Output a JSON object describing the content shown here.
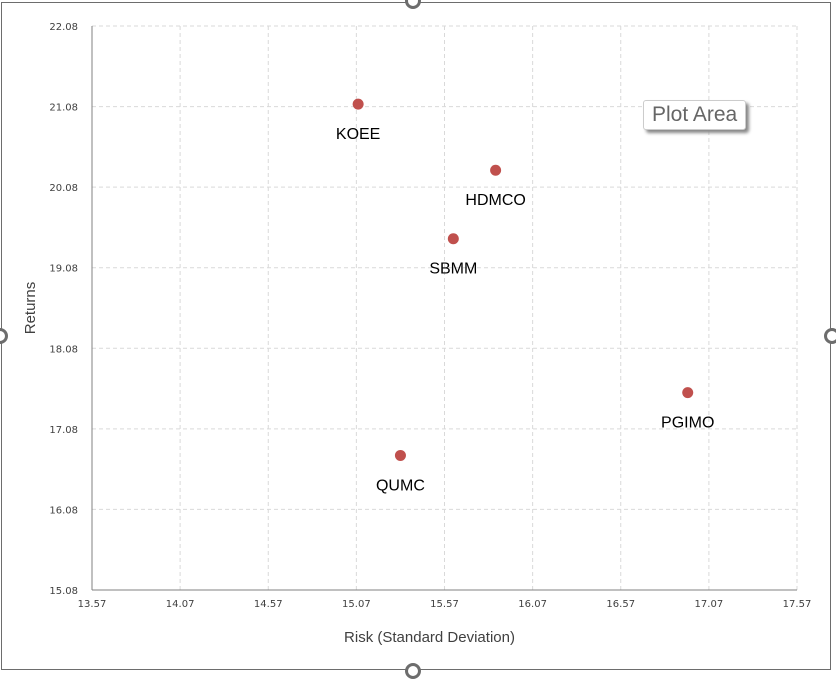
{
  "chart_data": {
    "type": "scatter",
    "title": "",
    "xlabel": "Risk (Standard Deviation)",
    "ylabel": "Returns",
    "xlim": [
      13.57,
      17.57
    ],
    "ylim": [
      15.08,
      22.08
    ],
    "xticks": [
      "13.57",
      "14.07",
      "14.57",
      "15.07",
      "15.57",
      "16.07",
      "16.57",
      "17.07",
      "17.57"
    ],
    "yticks": [
      "15.08",
      "16.08",
      "17.08",
      "18.08",
      "19.08",
      "20.08",
      "21.08",
      "22.08"
    ],
    "grid": true,
    "points": [
      {
        "label": "KOEE",
        "x": 15.08,
        "y": 21.11
      },
      {
        "label": "HDMCO",
        "x": 15.86,
        "y": 20.29
      },
      {
        "label": "SBMM",
        "x": 15.62,
        "y": 19.44
      },
      {
        "label": "PGIMO",
        "x": 16.95,
        "y": 17.53
      },
      {
        "label": "QUMC",
        "x": 15.32,
        "y": 16.75
      }
    ],
    "marker_color": "#c0504d"
  },
  "tooltip": "Plot Area"
}
